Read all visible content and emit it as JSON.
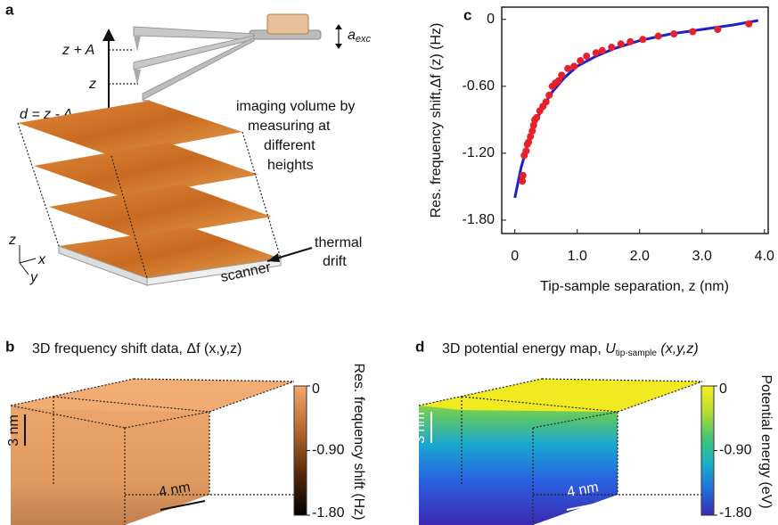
{
  "panel_a": {
    "label": "a",
    "heights": [
      "z + A",
      "z",
      "d = z - A"
    ],
    "amplitude": {
      "main": "a",
      "sub": "exc"
    },
    "volume_note": [
      "imaging volume by",
      "measuring at",
      "different",
      "heights"
    ],
    "drift_note": [
      "thermal",
      "drift"
    ],
    "scanner": "scanner",
    "axes": [
      "z",
      "x",
      "y"
    ]
  },
  "panel_b": {
    "label": "b",
    "title": "3D frequency shift data, Δf (x,y,z)",
    "scale_bars": [
      "3 nm",
      "4 nm"
    ],
    "colorbar": {
      "lim": [
        -1.8,
        0
      ],
      "ticks": [
        0,
        {
          "value": -0.9,
          "label": "-0.90"
        },
        {
          "value": -1.8,
          "label": "-1.80"
        }
      ],
      "label": "Res. frequency shift (Hz)",
      "colors": [
        "#000000",
        "#5a2c0c",
        "#b86a30",
        "#f0a870"
      ]
    }
  },
  "panel_d": {
    "label": "d",
    "title": {
      "before": "3D potential energy map, ",
      "symbol": "U",
      "sub": "tip-sample",
      "after": " (x,y,z)"
    },
    "scale_bars": [
      "3 nm",
      "4 nm"
    ],
    "colorbar": {
      "lim": [
        -1.8,
        0
      ],
      "ticks": [
        0,
        {
          "value": -0.9,
          "label": "-0.90"
        },
        {
          "value": -1.8,
          "label": "-1.80"
        }
      ],
      "label": "Potential energy (eV)",
      "colors": [
        "#3a2ab0",
        "#2070e0",
        "#18b0c8",
        "#40c870",
        "#b8dc30",
        "#f8f020"
      ]
    }
  },
  "chart_data": {
    "type": "scatter",
    "panel_label": "c",
    "xlabel": "Tip-sample separation, z (nm)",
    "ylabel": "Res. frequency shift,Δf (z) (Hz)",
    "xlim": [
      -0.21,
      4.06
    ],
    "ylim": [
      -1.92,
      0.11
    ],
    "xticks": [
      0,
      {
        "value": 1,
        "label": "1.0"
      },
      {
        "value": 2,
        "label": "2.0"
      },
      {
        "value": 3,
        "label": "3.0"
      },
      {
        "value": 4,
        "label": "4.0"
      }
    ],
    "yticks": [
      0,
      {
        "value": -0.6,
        "label": "-0.60"
      },
      {
        "value": -1.2,
        "label": "-1.20"
      },
      {
        "value": -1.8,
        "label": "-1.80"
      }
    ],
    "series": [
      {
        "type": "scatter",
        "color": "#e8202a",
        "x": [
          0.12,
          0.13,
          0.15,
          0.18,
          0.2,
          0.22,
          0.25,
          0.28,
          0.3,
          0.32,
          0.35,
          0.4,
          0.45,
          0.5,
          0.55,
          0.6,
          0.65,
          0.7,
          0.75,
          0.85,
          0.95,
          1.05,
          1.15,
          1.3,
          1.4,
          1.55,
          1.7,
          1.85,
          2.05,
          2.3,
          2.55,
          2.85,
          3.25,
          3.75
        ],
        "values": [
          -1.45,
          -1.4,
          -1.22,
          -1.18,
          -1.12,
          -1.1,
          -1.05,
          -1.0,
          -0.95,
          -0.9,
          -0.88,
          -0.82,
          -0.78,
          -0.74,
          -0.68,
          -0.6,
          -0.57,
          -0.55,
          -0.5,
          -0.44,
          -0.42,
          -0.37,
          -0.33,
          -0.3,
          -0.28,
          -0.25,
          -0.22,
          -0.2,
          -0.18,
          -0.15,
          -0.13,
          -0.11,
          -0.09,
          -0.04
        ]
      },
      {
        "type": "line",
        "color": "#1c22c8",
        "x": [
          0,
          0.1,
          0.2,
          0.3,
          0.4,
          0.5,
          0.6,
          0.8,
          1.0,
          1.3,
          1.6,
          2.0,
          2.5,
          3.0,
          3.5,
          3.9
        ],
        "values": [
          -1.6,
          -1.33,
          -1.13,
          -0.97,
          -0.84,
          -0.74,
          -0.65,
          -0.52,
          -0.42,
          -0.33,
          -0.26,
          -0.19,
          -0.13,
          -0.09,
          -0.05,
          -0.01
        ]
      }
    ]
  }
}
